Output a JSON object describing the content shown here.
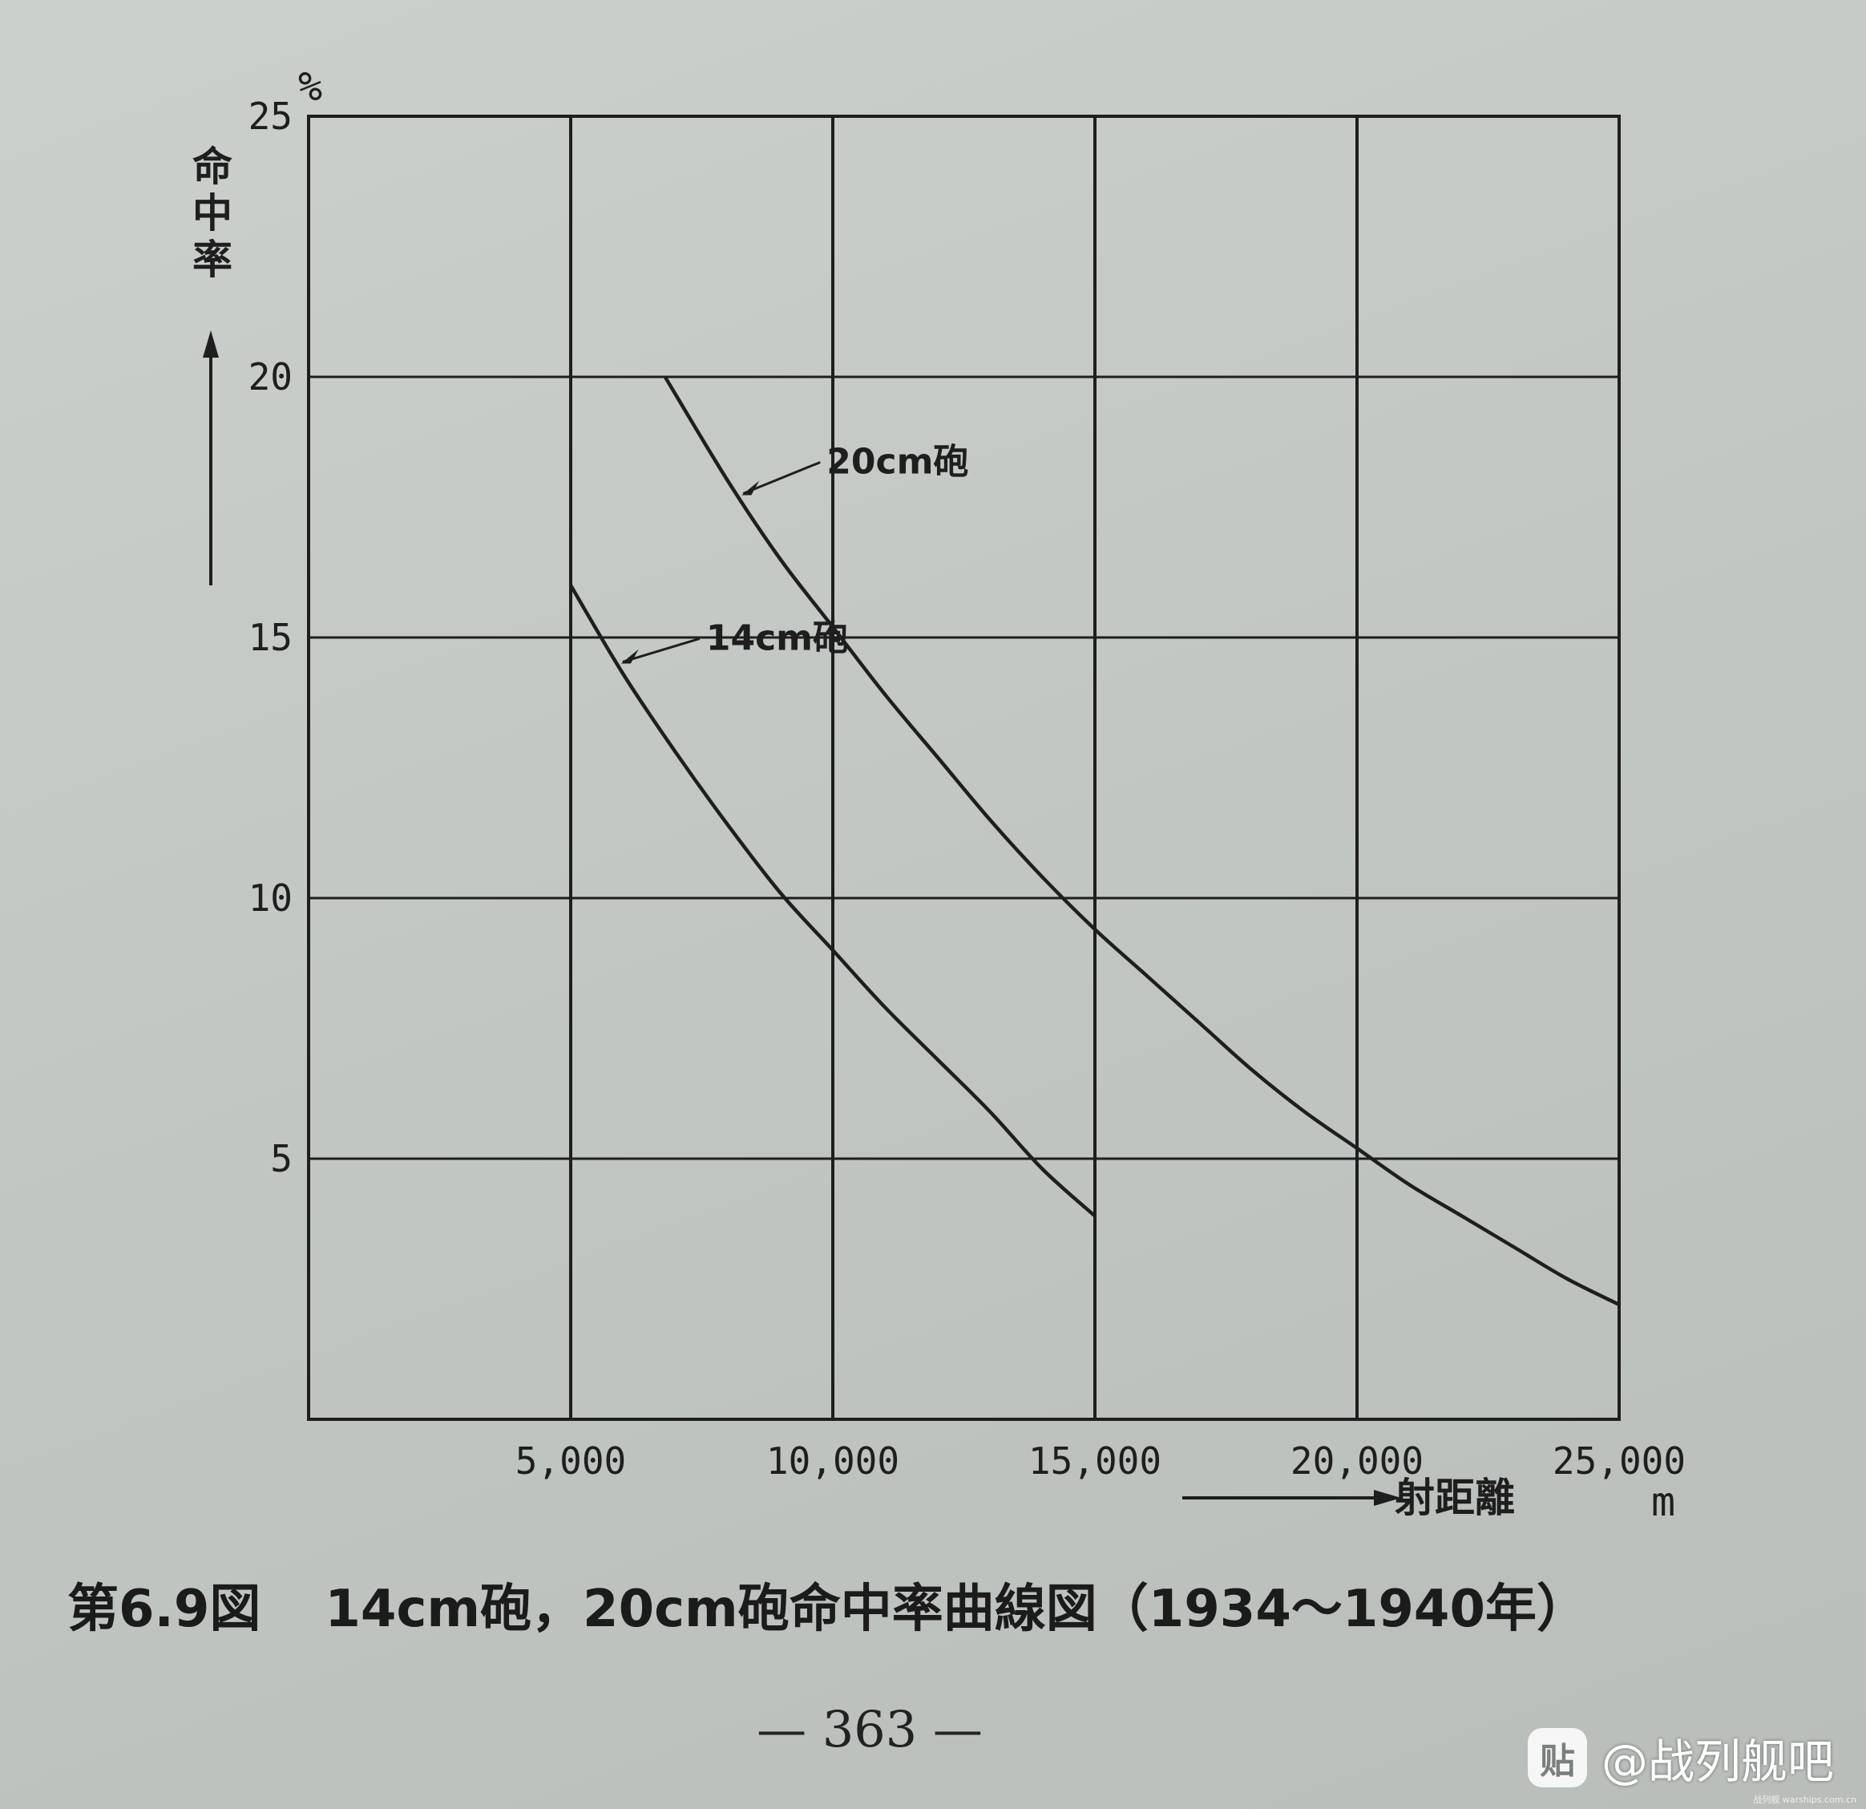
{
  "chart_data": {
    "type": "line",
    "unit_y": "%",
    "unit_x": "m",
    "ylabel": "命中率",
    "xlabel": "射距離",
    "xlim": [
      0,
      25000
    ],
    "ylim": [
      0,
      25
    ],
    "x_ticks": [
      5000,
      10000,
      15000,
      20000,
      25000
    ],
    "x_tick_labels": [
      "5,000",
      "10,000",
      "15,000",
      "20,000",
      "25,000"
    ],
    "y_ticks": [
      5,
      10,
      15,
      20,
      25
    ],
    "y_tick_labels": [
      "5",
      "10",
      "15",
      "20",
      "25"
    ],
    "grid": true,
    "series": [
      {
        "name": "20cm砲",
        "x": [
          6800,
          8000,
          9000,
          10000,
          11000,
          12000,
          13000,
          14000,
          15000,
          16000,
          17000,
          18000,
          19000,
          20000,
          21000,
          22000,
          23000,
          24000,
          25000
        ],
        "y": [
          20.0,
          18.0,
          16.5,
          15.2,
          13.9,
          12.7,
          11.5,
          10.4,
          9.4,
          8.5,
          7.6,
          6.7,
          5.9,
          5.2,
          4.5,
          3.9,
          3.3,
          2.7,
          2.2
        ]
      },
      {
        "name": "14cm砲",
        "x": [
          5000,
          6000,
          7000,
          8000,
          9000,
          10000,
          11000,
          12000,
          13000,
          14000,
          15000
        ],
        "y": [
          16.0,
          14.3,
          12.8,
          11.4,
          10.1,
          9.0,
          7.9,
          6.9,
          5.9,
          4.8,
          3.9
        ]
      }
    ]
  },
  "caption": {
    "figure_number": "第6.9図",
    "title": "14cm砲，20cm砲命中率曲線図（1934～1940年）"
  },
  "page_number": "— 363 —",
  "watermark": {
    "logo": "贴",
    "text": "@战列舰吧",
    "small_text": "战列舰 warships.com.cn"
  }
}
